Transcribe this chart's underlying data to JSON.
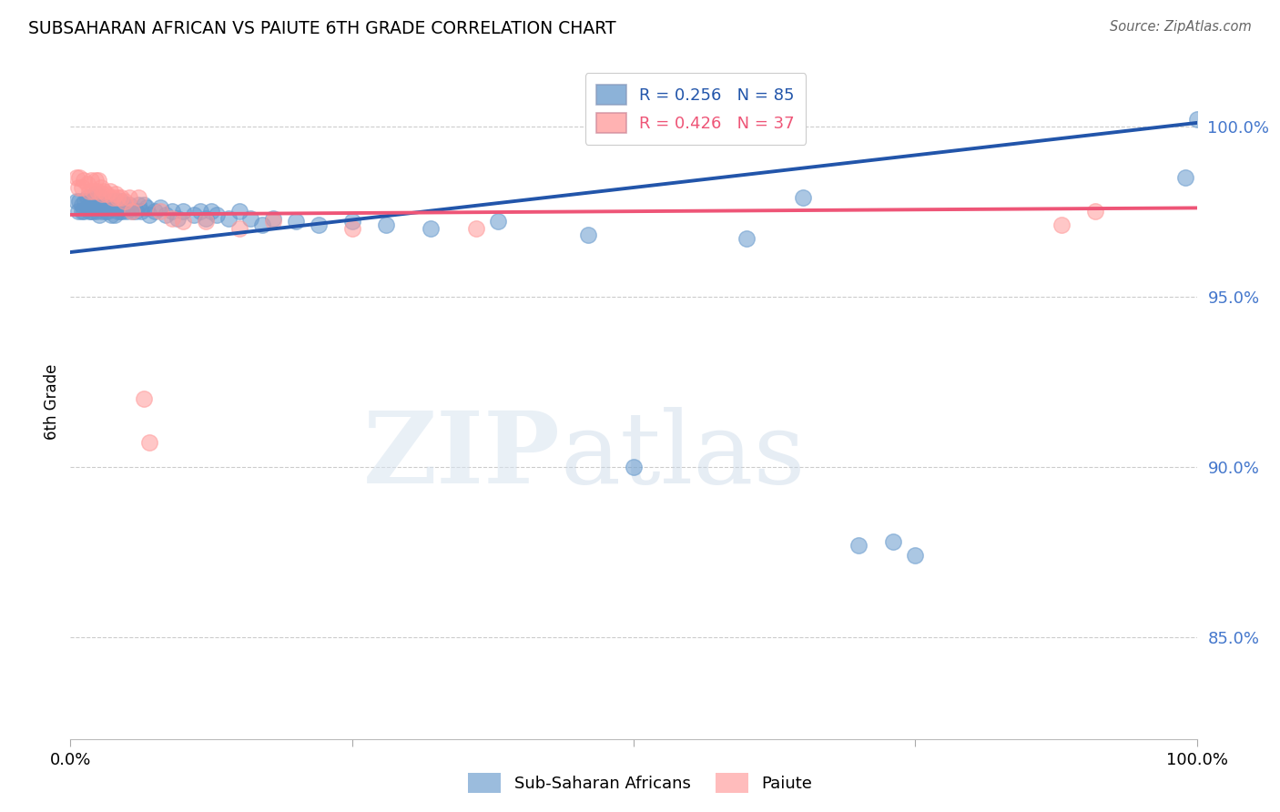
{
  "title": "SUBSAHARAN AFRICAN VS PAIUTE 6TH GRADE CORRELATION CHART",
  "source": "Source: ZipAtlas.com",
  "ylabel": "6th Grade",
  "ytick_labels": [
    "100.0%",
    "95.0%",
    "90.0%",
    "85.0%"
  ],
  "ytick_values": [
    1.0,
    0.95,
    0.9,
    0.85
  ],
  "xlim": [
    0.0,
    1.0
  ],
  "ylim": [
    0.82,
    1.018
  ],
  "legend_blue_label": "Sub-Saharan Africans",
  "legend_pink_label": "Paiute",
  "R_blue": 0.256,
  "N_blue": 85,
  "R_pink": 0.426,
  "N_pink": 37,
  "blue_color": "#6699CC",
  "pink_color": "#FF9999",
  "blue_line_color": "#2255AA",
  "pink_line_color": "#EE5577",
  "blue_line": [
    0.0,
    0.963,
    1.0,
    1.001
  ],
  "pink_line": [
    0.0,
    0.974,
    1.0,
    0.976
  ],
  "blue_x": [
    0.005,
    0.007,
    0.008,
    0.01,
    0.01,
    0.012,
    0.013,
    0.015,
    0.015,
    0.017,
    0.018,
    0.018,
    0.019,
    0.02,
    0.02,
    0.021,
    0.022,
    0.022,
    0.023,
    0.024,
    0.025,
    0.025,
    0.026,
    0.027,
    0.028,
    0.028,
    0.03,
    0.03,
    0.031,
    0.032,
    0.033,
    0.034,
    0.035,
    0.036,
    0.037,
    0.038,
    0.039,
    0.04,
    0.04,
    0.042,
    0.043,
    0.044,
    0.045,
    0.046,
    0.048,
    0.05,
    0.052,
    0.055,
    0.058,
    0.06,
    0.063,
    0.065,
    0.068,
    0.07,
    0.075,
    0.08,
    0.085,
    0.09,
    0.095,
    0.1,
    0.11,
    0.115,
    0.12,
    0.125,
    0.13,
    0.14,
    0.15,
    0.16,
    0.17,
    0.18,
    0.2,
    0.22,
    0.25,
    0.28,
    0.32,
    0.38,
    0.46,
    0.5,
    0.6,
    0.65,
    0.7,
    0.73,
    0.75,
    0.99,
    1.0
  ],
  "blue_y": [
    0.978,
    0.975,
    0.978,
    0.977,
    0.975,
    0.975,
    0.978,
    0.976,
    0.979,
    0.975,
    0.978,
    0.975,
    0.977,
    0.978,
    0.975,
    0.977,
    0.98,
    0.978,
    0.975,
    0.977,
    0.978,
    0.976,
    0.974,
    0.979,
    0.977,
    0.975,
    0.978,
    0.976,
    0.975,
    0.977,
    0.975,
    0.978,
    0.976,
    0.974,
    0.978,
    0.976,
    0.974,
    0.978,
    0.976,
    0.975,
    0.977,
    0.975,
    0.978,
    0.975,
    0.977,
    0.975,
    0.977,
    0.975,
    0.975,
    0.977,
    0.975,
    0.977,
    0.976,
    0.974,
    0.975,
    0.976,
    0.974,
    0.975,
    0.973,
    0.975,
    0.974,
    0.975,
    0.973,
    0.975,
    0.974,
    0.973,
    0.975,
    0.973,
    0.971,
    0.973,
    0.972,
    0.971,
    0.972,
    0.971,
    0.97,
    0.972,
    0.968,
    0.9,
    0.967,
    0.979,
    0.877,
    0.878,
    0.874,
    0.985,
    1.002
  ],
  "pink_x": [
    0.005,
    0.007,
    0.008,
    0.01,
    0.012,
    0.015,
    0.017,
    0.018,
    0.02,
    0.022,
    0.024,
    0.025,
    0.027,
    0.028,
    0.03,
    0.032,
    0.035,
    0.038,
    0.04,
    0.042,
    0.045,
    0.048,
    0.052,
    0.055,
    0.06,
    0.065,
    0.07,
    0.08,
    0.09,
    0.1,
    0.12,
    0.15,
    0.18,
    0.25,
    0.36,
    0.88,
    0.91
  ],
  "pink_y": [
    0.985,
    0.982,
    0.985,
    0.982,
    0.984,
    0.983,
    0.981,
    0.984,
    0.981,
    0.984,
    0.981,
    0.984,
    0.982,
    0.98,
    0.981,
    0.98,
    0.981,
    0.979,
    0.98,
    0.979,
    0.979,
    0.978,
    0.979,
    0.975,
    0.979,
    0.92,
    0.907,
    0.975,
    0.973,
    0.972,
    0.972,
    0.97,
    0.972,
    0.97,
    0.97,
    0.971,
    0.975
  ]
}
